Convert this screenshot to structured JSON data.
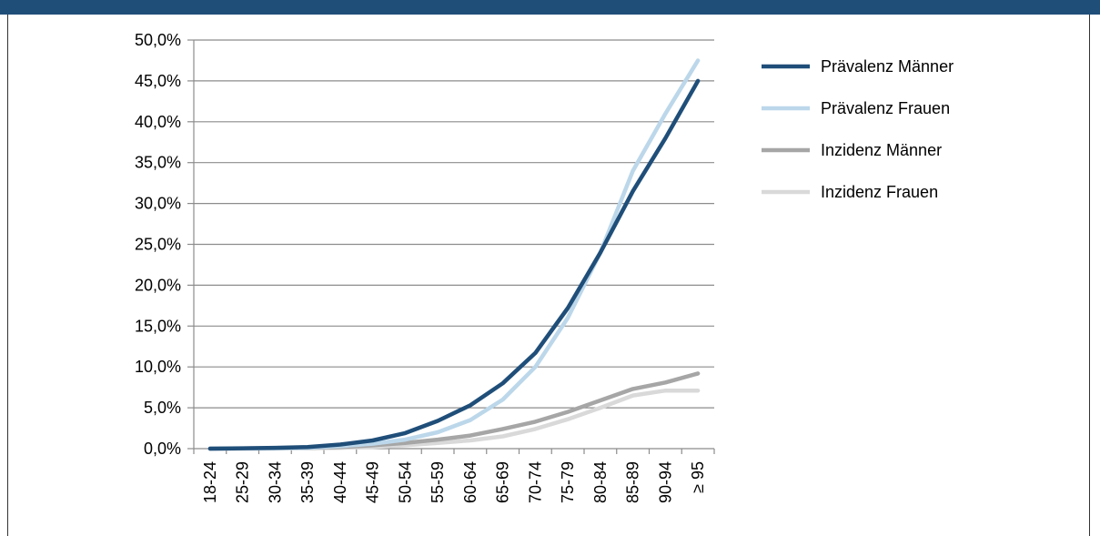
{
  "colors": {
    "header": "#1f4e79",
    "grid": "#8c8c8c",
    "axis": "#8c8c8c"
  },
  "chart_data": {
    "type": "line",
    "title": "",
    "xlabel": "",
    "ylabel": "",
    "ylim": [
      0,
      50
    ],
    "y_ticks": [
      "0,0%",
      "5,0%",
      "10,0%",
      "15,0%",
      "20,0%",
      "25,0%",
      "30,0%",
      "35,0%",
      "40,0%",
      "45,0%",
      "50,0%"
    ],
    "categories": [
      "18-24",
      "25-29",
      "30-34",
      "35-39",
      "40-44",
      "45-49",
      "50-54",
      "55-59",
      "60-64",
      "65-69",
      "70-74",
      "75-79",
      "80-84",
      "85-89",
      "90-94",
      "≥ 95"
    ],
    "grid": true,
    "legend_position": "right",
    "series": [
      {
        "name": "Prävalenz Männer",
        "color": "#1f4e79",
        "values": [
          0.0,
          0.05,
          0.1,
          0.2,
          0.5,
          1.0,
          1.9,
          3.4,
          5.3,
          8.0,
          11.7,
          17.2,
          24.0,
          31.5,
          38.0,
          45.0
        ]
      },
      {
        "name": "Prävalenz  Frauen",
        "color": "#bcd7ea",
        "values": [
          0.0,
          0.02,
          0.05,
          0.1,
          0.3,
          0.6,
          1.1,
          2.0,
          3.5,
          6.0,
          10.0,
          16.0,
          24.0,
          34.0,
          41.0,
          47.5
        ]
      },
      {
        "name": "Inzidenz Männer",
        "color": "#a6a6a6",
        "values": [
          0.0,
          0.02,
          0.05,
          0.1,
          0.2,
          0.4,
          0.7,
          1.1,
          1.6,
          2.4,
          3.3,
          4.5,
          5.9,
          7.3,
          8.1,
          9.2
        ]
      },
      {
        "name": "Inzidenz Frauen",
        "color": "#d9d9d9",
        "values": [
          0.0,
          0.01,
          0.02,
          0.05,
          0.1,
          0.2,
          0.4,
          0.7,
          1.0,
          1.5,
          2.4,
          3.6,
          5.0,
          6.5,
          7.1,
          7.1
        ]
      }
    ]
  }
}
